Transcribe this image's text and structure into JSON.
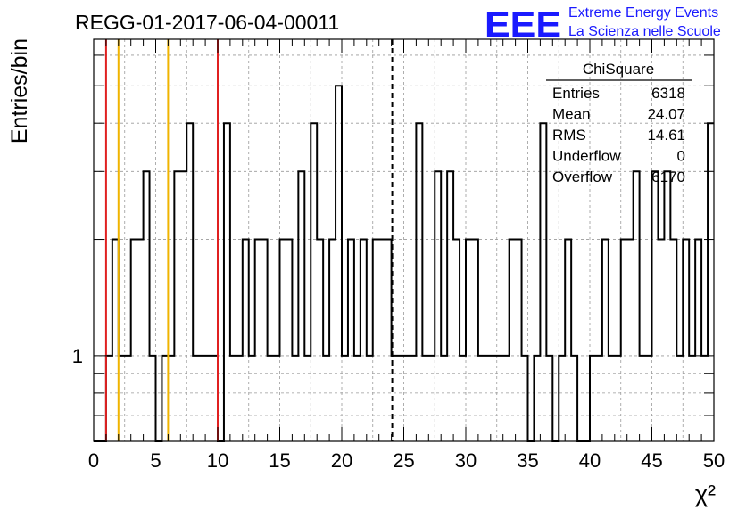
{
  "header": {
    "title": "REGG-01-2017-06-04-00011",
    "logo_text": "EEE",
    "logo_line1": "Extreme Energy Events",
    "logo_line2": "La Scienza nelle Scuole"
  },
  "stats": {
    "name": "ChiSquare",
    "rows": [
      {
        "label": "Entries",
        "value": "6318"
      },
      {
        "label": "Mean",
        "value": "24.07"
      },
      {
        "label": "RMS",
        "value": "14.61"
      },
      {
        "label": "Underflow",
        "value": "0"
      },
      {
        "label": "Overflow",
        "value": "6170"
      }
    ]
  },
  "chart_data": {
    "type": "bar",
    "histogram_style": "step",
    "title": "REGG-01-2017-06-04-00011",
    "xlabel": "χ²",
    "ylabel": "Entries/bin",
    "xlim": [
      0,
      50
    ],
    "ylim": [
      0.6,
      6.6
    ],
    "yscale": "log",
    "grid": true,
    "bin_width": 0.5,
    "xticks": [
      0,
      5,
      10,
      15,
      20,
      25,
      30,
      35,
      40,
      45,
      50
    ],
    "yticks": [
      1
    ],
    "ytick_labels": [
      "1"
    ],
    "counts": [
      0,
      0,
      1,
      2,
      1,
      1,
      2,
      2,
      3,
      1,
      0,
      1,
      1,
      3,
      3,
      4,
      1,
      1,
      1,
      1,
      0,
      4,
      1,
      1,
      2,
      1,
      2,
      2,
      1,
      1,
      2,
      2,
      1,
      3,
      1,
      4,
      2,
      1,
      2,
      5,
      1,
      2,
      1,
      2,
      1,
      2,
      2,
      2,
      1,
      1,
      1,
      1,
      4,
      1,
      1,
      3,
      1,
      3,
      2,
      1,
      2,
      2,
      1,
      1,
      1,
      1,
      1,
      2,
      2,
      1,
      0,
      1,
      4,
      1,
      0,
      1,
      2,
      1,
      0,
      0,
      1,
      1,
      2,
      1,
      1,
      2,
      2,
      3,
      1,
      1,
      3,
      2,
      3,
      2,
      1,
      2,
      1,
      2,
      1,
      4
    ],
    "reference_lines": [
      {
        "x": 1,
        "color": "#e02020",
        "style": "solid"
      },
      {
        "x": 2,
        "color": "#f0b400",
        "style": "solid"
      },
      {
        "x": 6,
        "color": "#f0b400",
        "style": "solid"
      },
      {
        "x": 10,
        "color": "#e02020",
        "style": "solid"
      },
      {
        "x": 24.07,
        "color": "#000000",
        "style": "dashed"
      }
    ]
  }
}
